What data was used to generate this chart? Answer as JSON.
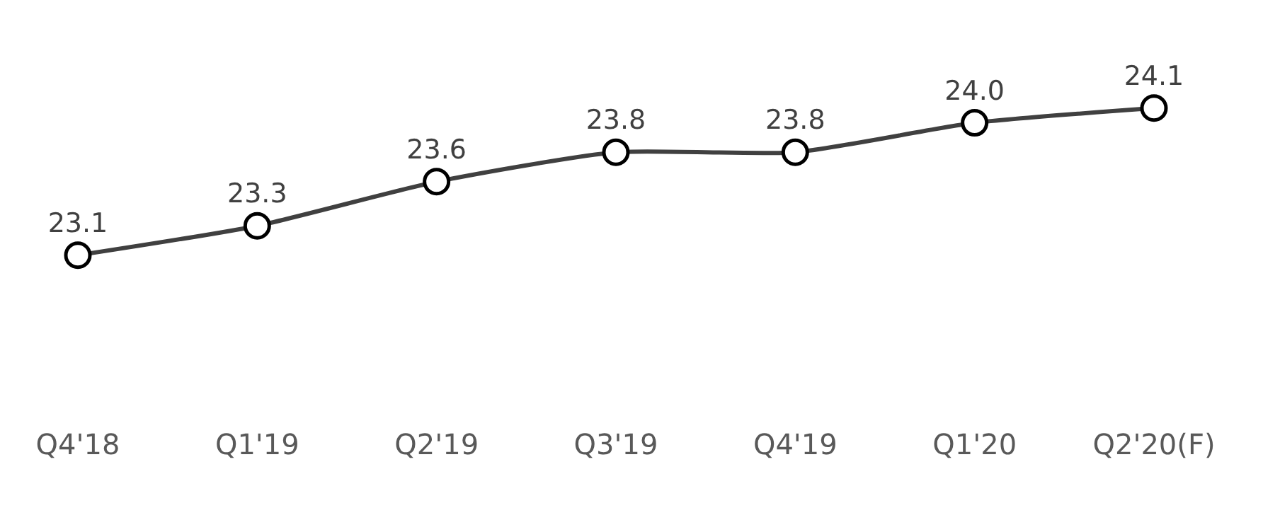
{
  "chart_data": {
    "type": "line",
    "categories": [
      "Q4'18",
      "Q1'19",
      "Q2'19",
      "Q3'19",
      "Q4'19",
      "Q1'20",
      "Q2'20(F)"
    ],
    "values": [
      23.1,
      23.3,
      23.6,
      23.8,
      23.8,
      24.0,
      24.1
    ],
    "color": "#404040",
    "marker": "circle",
    "value_labels": [
      "23.1",
      "23.3",
      "23.6",
      "23.8",
      "23.8",
      "24.0",
      "24.1"
    ],
    "grid": false,
    "legend": false
  }
}
